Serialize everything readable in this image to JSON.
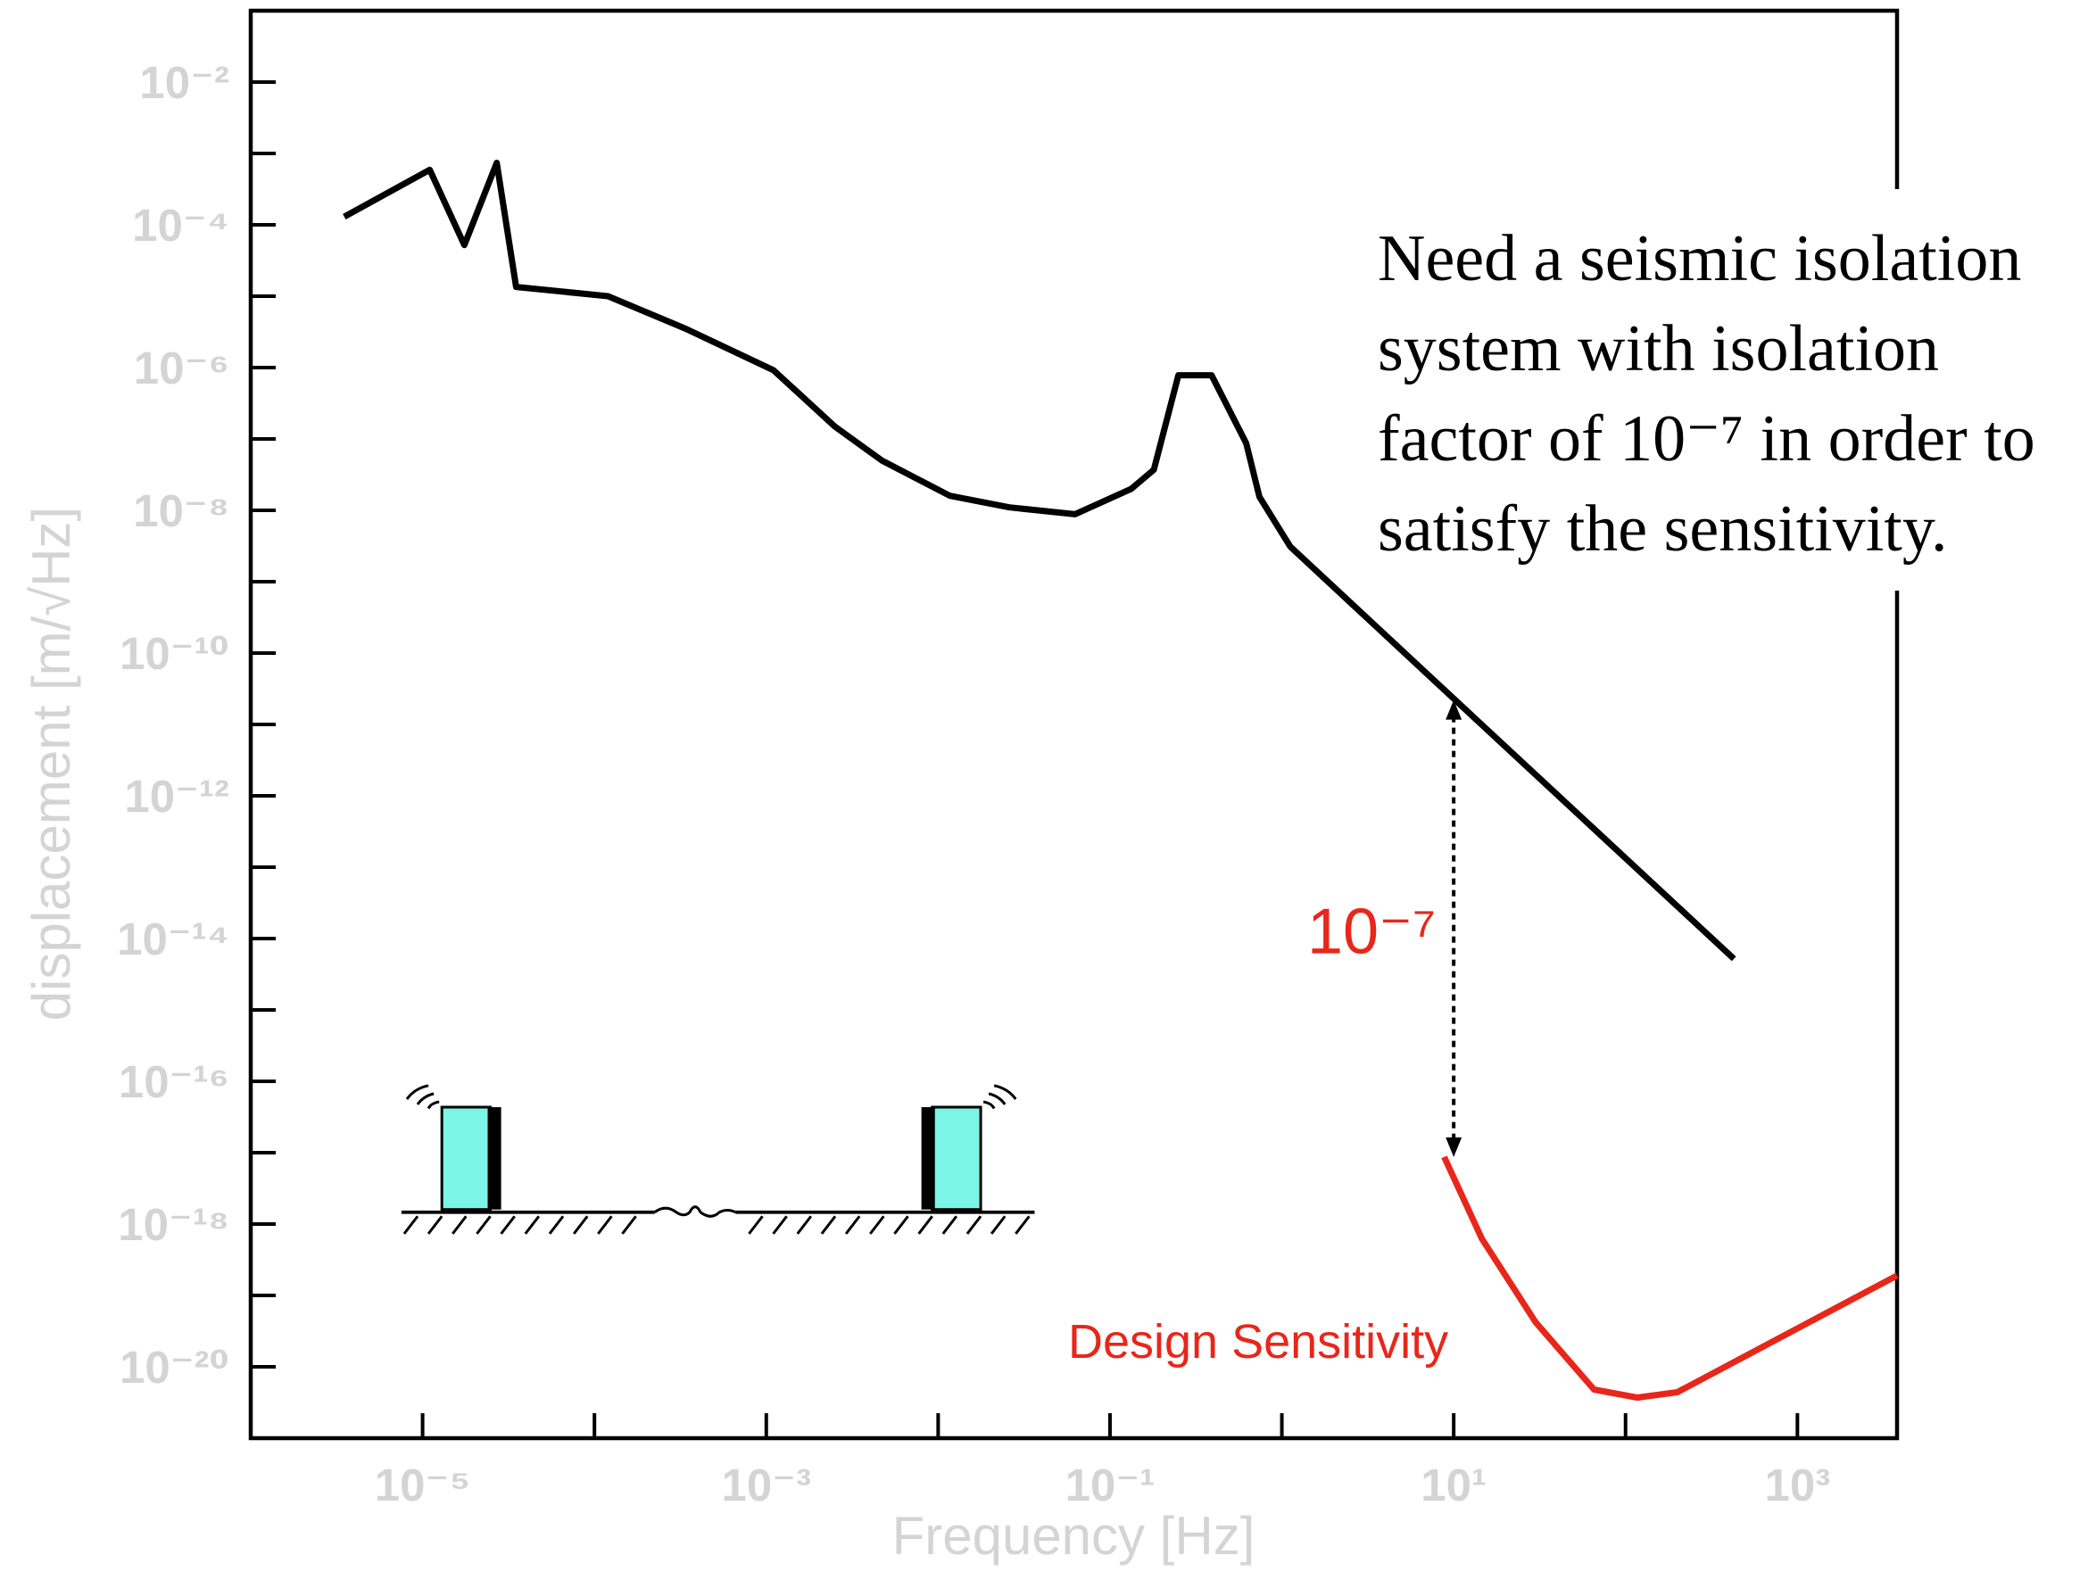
{
  "chart_data": {
    "type": "line",
    "xlabel": "Frequency [Hz]",
    "ylabel": "displacement [m/√Hz]",
    "log_x": true,
    "log_y": true,
    "xlim": [
      1e-06,
      3800
    ],
    "ylim": [
      1e-21,
      0.1
    ],
    "xticks": [
      {
        "value": 1e-05,
        "label": "10⁻⁵"
      },
      {
        "value": 0.001,
        "label": "10⁻³"
      },
      {
        "value": 0.1,
        "label": "10⁻¹"
      },
      {
        "value": 10,
        "label": "10¹"
      },
      {
        "value": 1000,
        "label": "10³"
      }
    ],
    "xminorticks": [
      0.0001,
      0.01,
      1,
      100
    ],
    "yticks": [
      {
        "value": 0.01,
        "label": "10⁻²"
      },
      {
        "value": 0.0001,
        "label": "10⁻⁴"
      },
      {
        "value": 1e-06,
        "label": "10⁻⁶"
      },
      {
        "value": 1e-08,
        "label": "10⁻⁸"
      },
      {
        "value": 1e-10,
        "label": "10⁻¹⁰"
      },
      {
        "value": 1e-12,
        "label": "10⁻¹²"
      },
      {
        "value": 1e-14,
        "label": "10⁻¹⁴"
      },
      {
        "value": 1e-16,
        "label": "10⁻¹⁶"
      },
      {
        "value": 1e-18,
        "label": "10⁻¹⁸"
      },
      {
        "value": 1e-20,
        "label": "10⁻²⁰"
      }
    ],
    "yminorticks": [
      0.001,
      1e-05,
      1e-07,
      1e-09,
      1e-11,
      1e-13,
      1e-15,
      1e-17,
      1e-19
    ],
    "series": [
      {
        "color": "#000000",
        "x": [
          3.5e-06,
          1.1e-05,
          1.75e-05,
          2.7e-05,
          3.5e-05,
          0.00012,
          0.00034,
          0.0011,
          0.0025,
          0.0047,
          0.0117,
          0.026,
          0.0625,
          0.133,
          0.18,
          0.25,
          0.39,
          0.62,
          0.74,
          1.12,
          10.2,
          427
        ],
        "values": [
          0.00013,
          0.00059,
          5.2e-05,
          0.00074,
          1.35e-05,
          1e-05,
          3.5e-06,
          9.2e-07,
          1.5e-07,
          5e-08,
          1.6e-08,
          1.1e-08,
          8.8e-09,
          2e-08,
          3.7e-08,
          7.8e-07,
          7.8e-07,
          8.7e-08,
          1.55e-08,
          3.1e-09,
          2.2e-11,
          5.2e-15
        ]
      },
      {
        "name": "Design Sensitivity",
        "color": "#e8261a",
        "x": [
          8.8,
          14.6,
          30,
          65.5,
          117,
          200,
          3800
        ],
        "values": [
          8.7e-18,
          6.2e-19,
          4.2e-20,
          4.8e-21,
          3.7e-21,
          4.4e-21,
          1.9e-19
        ]
      }
    ],
    "arrow": {
      "x": 10,
      "y": [
        2.2e-11,
        8.7e-18
      ],
      "label": "10⁻⁷",
      "color": "#e8261a"
    },
    "annotation": [
      "Need a seismic isolation",
      "system with isolation",
      "factor of 10⁻⁷ in order to",
      "satisfy the sensitivity."
    ]
  }
}
